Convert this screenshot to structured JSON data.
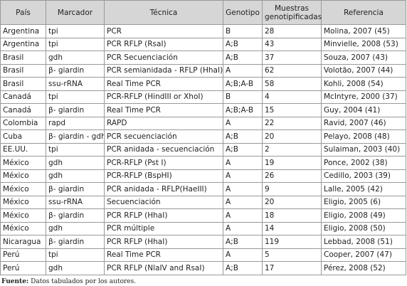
{
  "table": {
    "headers": [
      "País",
      "Marcador",
      "Técnica",
      "Genotipo",
      "Muestras genotipificadas",
      "Referencia"
    ],
    "rows": [
      [
        "Argentina",
        "tpi",
        "PCR",
        "B",
        28,
        "Molina, 2007 (45)"
      ],
      [
        "Argentina",
        "tpi",
        "PCR RFLP (RsaI)",
        "A;B",
        43,
        "Minvielle, 2008 (53)"
      ],
      [
        "Brasil",
        "gdh",
        "PCR Secuenciación",
        "A;B",
        37,
        "Souza, 2007 (43)"
      ],
      [
        "Brasil",
        "β- giardin",
        "PCR semianidada - RFLP (HhaI)",
        "A",
        62,
        "Volotão, 2007 (44)"
      ],
      [
        "Brasil",
        "ssu-rRNA",
        "Real Time PCR",
        "A;B;A-B",
        58,
        "Kohli, 2008 (54)"
      ],
      [
        "Canadá",
        "tpi",
        "PCR-RFLP (HindIII or XhoI)",
        "B",
        4,
        "McIntyre, 2000 (37)"
      ],
      [
        "Canadá",
        "β- giardin",
        "Real  Time PCR",
        "A;B;A-B",
        15,
        "Guy, 2004 (41)"
      ],
      [
        "Colombia",
        "rapd",
        "RAPD",
        "A",
        22,
        "Ravid, 2007 (46)"
      ],
      [
        "Cuba",
        "β- giardin - gdh",
        "PCR secuenciación",
        "A;B",
        20,
        "Pelayo, 2008 (48)"
      ],
      [
        "EE.UU.",
        "tpi",
        "PCR anidada - secuenciación",
        "A;B",
        2,
        "Sulaiman, 2003 (40)"
      ],
      [
        "México",
        "gdh",
        "PCR-RFLP (Pst I)",
        "A",
        19,
        "Ponce, 2002 (38)"
      ],
      [
        "México",
        "gdh",
        "PCR-RFLP (BspHI)",
        "A",
        26,
        "Cedillo, 2003 (39)"
      ],
      [
        "México",
        "β- giardin",
        "PCR anidada - RFLP(HaeIII)",
        "A",
        9,
        "Lalle, 2005 (42)"
      ],
      [
        "México",
        "ssu-rRNA",
        "Secuenciación",
        "A",
        20,
        "Eligio, 2005 (6)"
      ],
      [
        "México",
        "β- giardin",
        "PCR RFLP (HhaI)",
        "A",
        18,
        "Eligio, 2008 (49)"
      ],
      [
        "México",
        "gdh",
        "PCR múltiple",
        "A",
        14,
        "Eligio, 2008 (50)"
      ],
      [
        "Nicaragua",
        "β- giardin",
        "PCR RFLP (HhaI)",
        "A;B",
        119,
        "Lebbad, 2008 (51)"
      ],
      [
        "Perú",
        "tpi",
        "Real Time PCR",
        "A",
        5,
        "Cooper, 2007 (47)"
      ],
      [
        "Perú",
        "gdh",
        "PCR RFLP (NlaIV and RsaI)",
        "A;B",
        17,
        "Pérez, 2008 (52)"
      ]
    ]
  },
  "footnote": {
    "label": "Fuente:",
    "text": "Datos tabulados por los autores."
  }
}
